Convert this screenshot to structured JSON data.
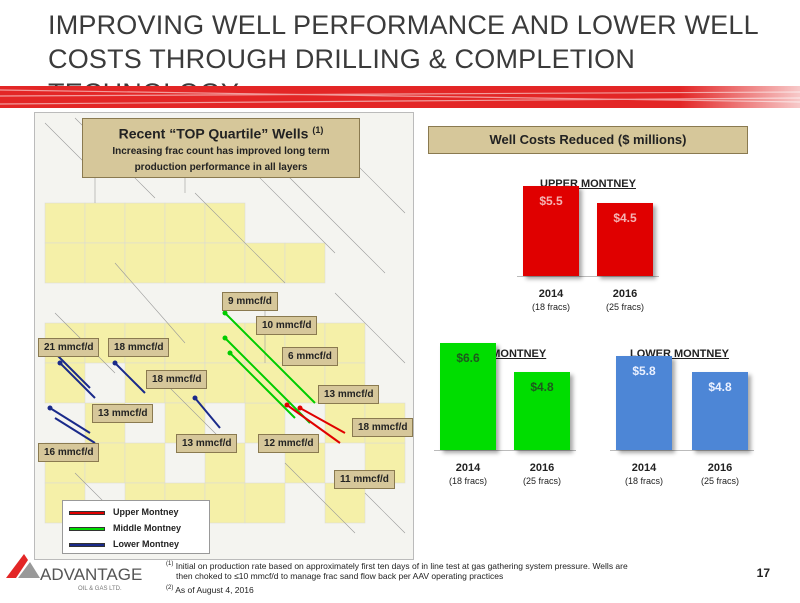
{
  "title": "IMPROVING WELL PERFORMANCE AND LOWER WELL COSTS THROUGH DRILLING & COMPLETION TECHNOLOGY",
  "colors": {
    "red_bar": "#e32626",
    "upper": "#e00000",
    "middle": "#00dd00",
    "lower": "#4d86d6",
    "callout_bg": "#d6c79a"
  },
  "map": {
    "heading": "Recent “TOP Quartile” Wells",
    "heading_sup": "(1)",
    "subheading_1": "Increasing frac count has improved long term",
    "subheading_2": "production performance in all layers",
    "callouts": [
      {
        "text": "9 mmcf/d"
      },
      {
        "text": "10 mmcf/d"
      },
      {
        "text": "21 mmcf/d"
      },
      {
        "text": "18 mmcf/d"
      },
      {
        "text": "6 mmcf/d"
      },
      {
        "text": "18 mmcf/d"
      },
      {
        "text": "13 mmcf/d"
      },
      {
        "text": "13 mmcf/d"
      },
      {
        "text": "18 mmcf/d"
      },
      {
        "text": "16 mmcf/d"
      },
      {
        "text": "13 mmcf/d"
      },
      {
        "text": "12 mmcf/d"
      },
      {
        "text": "11 mmcf/d"
      }
    ],
    "legend": [
      "Upper Montney",
      "Middle Montney",
      "Lower Montney"
    ]
  },
  "well_costs_heading": "Well Costs Reduced ($ millions)",
  "chart_data": [
    {
      "type": "bar",
      "title": "UPPER MONTNEY",
      "categories": [
        "2014",
        "2016"
      ],
      "category_notes": [
        "(18 fracs)",
        "(25 fracs)"
      ],
      "values": [
        5.5,
        4.5
      ],
      "value_labels": [
        "$5.5",
        "$4.5"
      ],
      "color": "#e00000",
      "ylim": [
        0,
        7
      ]
    },
    {
      "type": "bar",
      "title": "MIDDLE MONTNEY",
      "categories": [
        "2014",
        "2016"
      ],
      "category_notes": [
        "(18 fracs)",
        "(25 fracs)"
      ],
      "values": [
        6.6,
        4.8
      ],
      "value_labels": [
        "$6.6",
        "$4.8"
      ],
      "color": "#00dd00",
      "ylim": [
        0,
        7
      ]
    },
    {
      "type": "bar",
      "title": "LOWER MONTNEY",
      "categories": [
        "2014",
        "2016"
      ],
      "category_notes": [
        "(18 fracs)",
        "(25 fracs)"
      ],
      "values": [
        5.8,
        4.8
      ],
      "value_labels": [
        "$5.8",
        "$4.8"
      ],
      "color": "#4d86d6",
      "ylim": [
        0,
        7
      ]
    }
  ],
  "footnotes": {
    "f1_mark": "(1)",
    "f1_line1": "Initial on production rate based on approximately first ten days of in line test at gas gathering system pressure. Wells are",
    "f1_line2": "then choked to ≤10 mmcf/d to manage frac sand flow back per AAV operating practices",
    "f2_mark": "(2)",
    "f2": "As of August 4, 2016"
  },
  "logo": {
    "name": "ADVANTAGE",
    "sub": "OIL & GAS LTD."
  },
  "page_number": "17"
}
